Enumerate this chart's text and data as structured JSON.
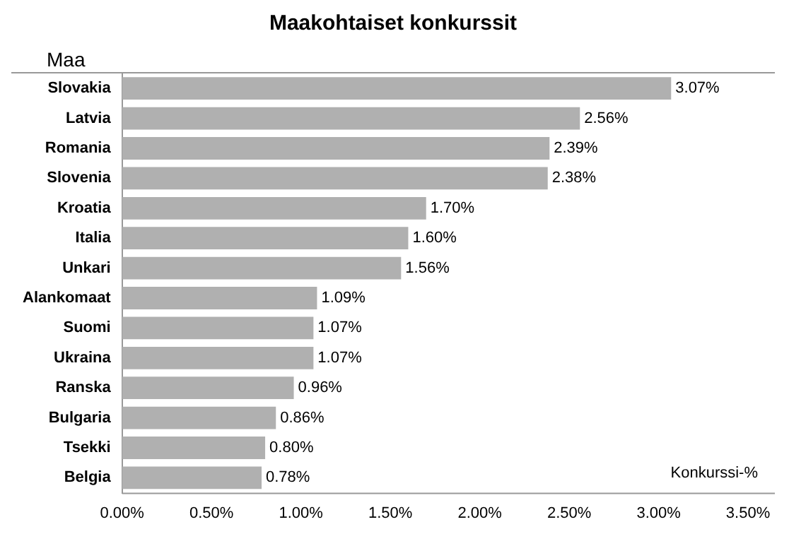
{
  "chart_data": {
    "type": "bar",
    "orientation": "horizontal",
    "title": "Maakohtaiset konkurssit",
    "ylabel": "Maa",
    "xlabel": "Konkurssi-%",
    "categories": [
      "Slovakia",
      "Latvia",
      "Romania",
      "Slovenia",
      "Kroatia",
      "Italia",
      "Unkari",
      "Alankomaat",
      "Suomi",
      "Ukraina",
      "Ranska",
      "Bulgaria",
      "Tsekki",
      "Belgia"
    ],
    "values": [
      3.07,
      2.56,
      2.39,
      2.38,
      1.7,
      1.6,
      1.56,
      1.09,
      1.07,
      1.07,
      0.96,
      0.86,
      0.8,
      0.78
    ],
    "value_labels": [
      "3.07%",
      "2.56%",
      "2.39%",
      "2.38%",
      "1.70%",
      "1.60%",
      "1.56%",
      "1.09%",
      "1.07%",
      "1.07%",
      "0.96%",
      "0.86%",
      "0.80%",
      "0.78%"
    ],
    "color": "#b0b0b0",
    "xlim": [
      0,
      3.65
    ],
    "xticks": [
      {
        "value": 0,
        "label": "0.00%"
      },
      {
        "value": 0.5,
        "label": "0.50%"
      },
      {
        "value": 1,
        "label": "1.00%"
      },
      {
        "value": 1.5,
        "label": "1.50%"
      },
      {
        "value": 2,
        "label": "2.00%"
      },
      {
        "value": 2.5,
        "label": "2.50%"
      },
      {
        "value": 3,
        "label": "3.00%"
      },
      {
        "value": 3.5,
        "label": "3.50%"
      }
    ],
    "grid": false,
    "legend": false
  }
}
